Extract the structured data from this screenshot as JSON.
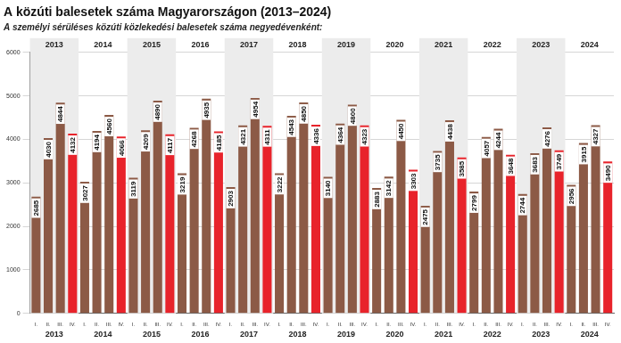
{
  "chart_data": {
    "type": "bar",
    "title": "A közúti balesetek száma Magyarországon (2013–2024)",
    "subtitle": "A személyi sérüléses közúti közlekedési balesetek száma negyedévenként:",
    "categories": [
      "I.",
      "II.",
      "III.",
      "IV.",
      "I.",
      "II.",
      "III.",
      "IV.",
      "I.",
      "II.",
      "III.",
      "IV.",
      "I.",
      "II.",
      "III.",
      "IV.",
      "I.",
      "II.",
      "III.",
      "IV.",
      "I.",
      "II.",
      "III.",
      "IV.",
      "I.",
      "II.",
      "III.",
      "IV.",
      "I.",
      "II.",
      "III.",
      "IV.",
      "I.",
      "II.",
      "III.",
      "IV.",
      "I.",
      "II.",
      "III.",
      "IV.",
      "I.",
      "II.",
      "III.",
      "IV.",
      "I.",
      "II.",
      "III.",
      "IV."
    ],
    "groups": [
      "2013",
      "2014",
      "2015",
      "2016",
      "2017",
      "2018",
      "2019",
      "2020",
      "2021",
      "2022",
      "2023",
      "2024"
    ],
    "values": [
      2685,
      4030,
      4844,
      4132,
      3027,
      4194,
      4560,
      4066,
      3119,
      4209,
      4890,
      4117,
      3219,
      4268,
      4935,
      4185,
      2903,
      4321,
      4954,
      4311,
      3222,
      4543,
      4850,
      4336,
      3140,
      4364,
      4800,
      4323,
      2883,
      3142,
      4450,
      3303,
      2475,
      3735,
      4438,
      3585,
      2799,
      4057,
      4244,
      3648,
      2744,
      3683,
      4276,
      3749,
      2956,
      3915,
      4327,
      3490
    ],
    "colors": [
      "#8c5a46",
      "#8c5a46",
      "#8c5a46",
      "#e8232b",
      "#8c5a46",
      "#8c5a46",
      "#8c5a46",
      "#e8232b",
      "#8c5a46",
      "#8c5a46",
      "#8c5a46",
      "#e8232b",
      "#8c5a46",
      "#8c5a46",
      "#8c5a46",
      "#e8232b",
      "#8c5a46",
      "#8c5a46",
      "#8c5a46",
      "#e8232b",
      "#8c5a46",
      "#8c5a46",
      "#8c5a46",
      "#e8232b",
      "#8c5a46",
      "#8c5a46",
      "#8c5a46",
      "#e8232b",
      "#8c5a46",
      "#8c5a46",
      "#8c5a46",
      "#e8232b",
      "#8c5a46",
      "#8c5a46",
      "#8c5a46",
      "#e8232b",
      "#8c5a46",
      "#8c5a46",
      "#8c5a46",
      "#e8232b",
      "#8c5a46",
      "#8c5a46",
      "#8c5a46",
      "#e8232b",
      "#8c5a46",
      "#8c5a46",
      "#8c5a46",
      "#e8232b"
    ],
    "ylim": [
      0,
      6000
    ],
    "yticks": [
      0,
      1000,
      2000,
      3000,
      4000,
      5000,
      6000
    ],
    "grid": true,
    "data_labels": true
  }
}
